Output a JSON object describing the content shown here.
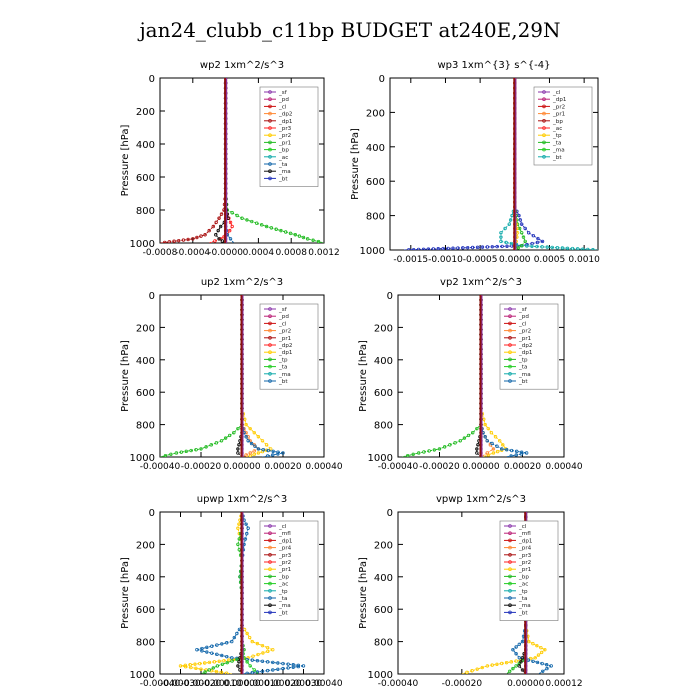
{
  "page": {
    "title": "jan24_clubb_c11bp  BUDGET at240E,29N"
  },
  "chart_data": [
    {
      "id": "wp2",
      "type": "line",
      "title": "wp2  1xm^2/s^3",
      "ylabel": "Pressure [hPa]",
      "xlim": [
        -0.0008,
        0.0012
      ],
      "ylim": [
        1000,
        0
      ],
      "xticks": [
        -0.0008,
        -0.0004,
        0,
        0.0004,
        0.0008,
        0.0012
      ],
      "xtick_labels": [
        "-0.0008",
        "-0.0004",
        "-0.0000",
        "0.0004",
        "0.0008",
        "0.0012"
      ],
      "yticks": [
        0,
        200,
        400,
        600,
        800,
        1000
      ],
      "legend": [
        "_sf",
        "_pd",
        "_cl",
        "_dp2",
        "_dp1",
        "_pr3",
        "_pr2",
        "_pr1",
        "_bp",
        "_ac",
        "_ta",
        "_ma",
        "_bt"
      ],
      "levels": [
        0,
        400,
        700,
        800,
        850,
        900,
        950,
        975,
        1000
      ],
      "series": [
        {
          "key": "_bp",
          "color": "#22bb22",
          "values": [
            0,
            0,
            0,
            2e-05,
            0.0002,
            0.0005,
            0.00085,
            0.001,
            0.0012
          ]
        },
        {
          "key": "_dp1",
          "color": "#aa1111",
          "values": [
            0,
            0,
            0,
            -2e-05,
            -8e-05,
            -0.00015,
            -0.00025,
            -0.0004,
            -0.0008
          ]
        },
        {
          "key": "_pr1",
          "color": "#ff2222",
          "values": [
            0,
            0,
            0,
            0,
            4e-05,
            8e-05,
            2e-05,
            -6e-05,
            -0.0002
          ]
        },
        {
          "key": "_ac",
          "color": "#1166aa",
          "values": [
            0,
            0,
            0,
            0,
            0,
            0,
            2e-05,
            6e-05,
            0.0001
          ]
        },
        {
          "key": "_ta",
          "color": "#111111",
          "values": [
            0,
            0,
            0,
            1e-05,
            3e-05,
            -6e-05,
            -0.00012,
            -8e-05,
            0
          ]
        },
        {
          "key": "_sf",
          "color": "#8833aa",
          "values": [
            0,
            0,
            0,
            0,
            0,
            0,
            0,
            0,
            0
          ]
        }
      ]
    },
    {
      "id": "wp3",
      "type": "line",
      "title": "wp3  1xm^{3} s^{-4}",
      "ylabel": "Pressure [hPa]",
      "xlim": [
        -0.0018,
        0.0012
      ],
      "ylim": [
        1000,
        0
      ],
      "xticks": [
        -0.0015,
        -0.001,
        -0.0005,
        0,
        0.0005,
        0.001
      ],
      "xtick_labels": [
        "-0.0015",
        "-0.0010",
        "-0.0005",
        "0.0000",
        "0.0005",
        "0.0010"
      ],
      "yticks": [
        0,
        200,
        400,
        600,
        800,
        1000
      ],
      "legend": [
        "_cl",
        "_dp1",
        "_pr2",
        "_pr1",
        "_bp",
        "_ac",
        "_tp",
        "_ta",
        "_ma",
        "_bt"
      ],
      "levels": [
        0,
        500,
        750,
        800,
        850,
        900,
        950,
        975,
        1000
      ],
      "series": [
        {
          "key": "_ta",
          "color": "#2233bb",
          "values": [
            0,
            0,
            0,
            6e-05,
            0.0001,
            0.0002,
            0.0004,
            0.0001,
            -0.0016
          ]
        },
        {
          "key": "_tp",
          "color": "#11aaaa",
          "values": [
            0,
            0,
            0,
            -4e-05,
            -8e-05,
            -0.0002,
            -0.0002,
            0.0001,
            0.0012
          ]
        },
        {
          "key": "_bp",
          "color": "#22bb22",
          "values": [
            0,
            0,
            0,
            2e-05,
            4e-05,
            0.0001,
            0.00015,
            0.0001,
            0
          ]
        },
        {
          "key": "_pr1",
          "color": "#ffcc00",
          "values": [
            0,
            0,
            0,
            0,
            2e-05,
            4e-05,
            2e-05,
            0,
            0
          ]
        },
        {
          "key": "_cl",
          "color": "#ff2222",
          "values": [
            0,
            0,
            0,
            0,
            0,
            0,
            0,
            0,
            0
          ]
        }
      ]
    },
    {
      "id": "up2",
      "type": "line",
      "title": "up2   1xm^2/s^3",
      "ylabel": "Pressure [hPa]",
      "xlim": [
        -0.0004,
        0.0004
      ],
      "ylim": [
        1000,
        0
      ],
      "xticks": [
        -0.0004,
        -0.0002,
        0,
        0.0002,
        0.0004
      ],
      "xtick_labels": [
        "-0.00040",
        "-0.00020",
        "0.00000",
        "0.00020",
        "0.00040"
      ],
      "yticks": [
        0,
        200,
        400,
        600,
        800,
        1000
      ],
      "legend": [
        "_sf",
        "_pd",
        "_cl",
        "_pr2",
        "_pr1",
        "_dp2",
        "_dp1",
        "_tp",
        "_ta",
        "_ma",
        "_bt"
      ],
      "levels": [
        0,
        700,
        800,
        850,
        900,
        950,
        975,
        1000
      ],
      "series": [
        {
          "key": "_dp1",
          "color": "#22bb22",
          "values": [
            0,
            0,
            0,
            -4e-05,
            -0.0001,
            -0.0002,
            -0.00032,
            -0.0004
          ]
        },
        {
          "key": "_pr1",
          "color": "#ffcc00",
          "values": [
            0,
            0,
            2e-05,
            6e-05,
            0.0001,
            0.00014,
            8e-05,
            2e-05
          ]
        },
        {
          "key": "_pr2",
          "color": "#ff8833",
          "values": [
            0,
            0,
            0,
            2e-05,
            4e-05,
            8e-05,
            4e-05,
            0
          ]
        },
        {
          "key": "_tp",
          "color": "#1166aa",
          "values": [
            0,
            0,
            0,
            1e-05,
            3e-05,
            8e-05,
            0.0002,
            0.0001
          ]
        },
        {
          "key": "_ta",
          "color": "#111111",
          "values": [
            0,
            0,
            0,
            0,
            -1e-05,
            -2e-05,
            -2e-05,
            0
          ]
        },
        {
          "key": "_sf",
          "color": "#aa1111",
          "values": [
            0,
            0,
            0,
            0,
            0,
            0,
            0,
            0
          ]
        }
      ]
    },
    {
      "id": "vp2",
      "type": "line",
      "title": "vp2   1xm^2/s^3",
      "ylabel": "Pressure [hPa]",
      "xlim": [
        -0.0004,
        0.0004
      ],
      "ylim": [
        1000,
        0
      ],
      "xticks": [
        -0.0004,
        -0.0002,
        0,
        0.0002,
        0.0004
      ],
      "xtick_labels": [
        "-0.00040",
        "-0.00020",
        "0.00000",
        "0.00020",
        "0.00040"
      ],
      "yticks": [
        0,
        200,
        400,
        600,
        800,
        1000
      ],
      "legend": [
        "_sf",
        "_pd",
        "_cl",
        "_pr2",
        "_pr1",
        "_dp2",
        "_dp1",
        "_tp",
        "_ta",
        "_ma",
        "_bt"
      ],
      "levels": [
        0,
        700,
        800,
        850,
        900,
        950,
        975,
        1000
      ],
      "series": [
        {
          "key": "_dp1",
          "color": "#22bb22",
          "values": [
            0,
            0,
            0,
            -4e-05,
            -0.0001,
            -0.0002,
            -0.0003,
            -0.00038
          ]
        },
        {
          "key": "_pr1",
          "color": "#ffcc00",
          "values": [
            0,
            0,
            2e-05,
            5e-05,
            9e-05,
            0.00012,
            6e-05,
            1e-05
          ]
        },
        {
          "key": "_pr2",
          "color": "#ff8833",
          "values": [
            0,
            0,
            0,
            1e-05,
            3e-05,
            6e-05,
            3e-05,
            0
          ]
        },
        {
          "key": "_tp",
          "color": "#1166aa",
          "values": [
            0,
            0,
            0,
            1e-05,
            3e-05,
            0.0001,
            0.00022,
            0.00012
          ]
        },
        {
          "key": "_ta",
          "color": "#111111",
          "values": [
            0,
            0,
            0,
            0,
            -1e-05,
            -2e-05,
            -2e-05,
            0
          ]
        },
        {
          "key": "_sf",
          "color": "#aa1111",
          "values": [
            0,
            0,
            0,
            0,
            0,
            0,
            0,
            0
          ]
        }
      ]
    },
    {
      "id": "upwp",
      "type": "line",
      "title": "upwp   1xm^2/s^3",
      "ylabel": "Pressure [hPa]",
      "xlim": [
        -0.0004,
        0.0004
      ],
      "ylim": [
        1000,
        0
      ],
      "xticks": [
        -0.0004,
        -0.0003,
        -0.0002,
        -0.0001,
        0,
        0.0001,
        0.0002,
        0.0003,
        0.0004
      ],
      "xtick_labels": [
        "-0.00040",
        "-0.00030",
        "-0.00020",
        "-0.00010",
        "0.00000",
        "0.00010",
        "0.00020",
        "0.00030",
        "0.00040"
      ],
      "yticks": [
        0,
        200,
        400,
        600,
        800,
        1000
      ],
      "legend": [
        "_cl",
        "_mfl",
        "_dp1",
        "_pr4",
        "_pr3",
        "_pr2",
        "_pr1",
        "_bp",
        "_ac",
        "_tp",
        "_ta",
        "_ma",
        "_bt"
      ],
      "levels": [
        0,
        50,
        100,
        200,
        300,
        400,
        500,
        700,
        800,
        850,
        900,
        950,
        1000
      ],
      "series": [
        {
          "key": "_pr1",
          "color": "#ffcc00",
          "values": [
            0,
            -1e-05,
            -2e-05,
            0,
            0,
            0,
            0,
            0,
            5e-05,
            0.00015,
            3e-05,
            -0.0003,
            -5e-05
          ]
        },
        {
          "key": "_tp",
          "color": "#1166aa",
          "values": [
            0,
            1e-05,
            3e-05,
            1e-05,
            0,
            -1e-05,
            0,
            0,
            -5e-05,
            -0.00022,
            -5e-05,
            0.0003,
            0
          ]
        },
        {
          "key": "_ac",
          "color": "#22bb22",
          "values": [
            0,
            0,
            0,
            -2e-05,
            0,
            -1e-05,
            0,
            0,
            0,
            1e-05,
            0,
            -0.00012,
            -0.0002
          ]
        },
        {
          "key": "_bp",
          "color": "#22cc22",
          "values": [
            0,
            0,
            0,
            0,
            0,
            0,
            0,
            0,
            0,
            0,
            1e-05,
            4e-05,
            8e-05
          ]
        },
        {
          "key": "_ta",
          "color": "#111111",
          "values": [
            0,
            0,
            0,
            0,
            0,
            0,
            0,
            0,
            0,
            0,
            -1e-05,
            -2e-05,
            0
          ]
        },
        {
          "key": "_pr2",
          "color": "#aa1111",
          "values": [
            0,
            0,
            0,
            0,
            0,
            0,
            0,
            0,
            0,
            0,
            0,
            0,
            0
          ]
        },
        {
          "key": "_cl",
          "color": "#8833aa",
          "values": [
            0,
            0,
            0,
            0,
            0,
            0,
            0,
            0,
            0,
            0,
            0,
            0,
            0
          ]
        }
      ]
    },
    {
      "id": "vpwp",
      "type": "line",
      "title": "vpwp   1xm^2/s^3",
      "ylabel": "Pressure [hPa]",
      "xlim": [
        -0.0004,
        0.00012
      ],
      "ylim": [
        1000,
        0
      ],
      "xticks": [
        -0.0004,
        -0.0002,
        0,
        0.00012
      ],
      "xtick_labels": [
        "-0.00040",
        "-0.00020",
        "0.00000",
        "0.00012"
      ],
      "yticks": [
        0,
        200,
        400,
        600,
        800,
        1000
      ],
      "legend": [
        "_cl",
        "_mfl",
        "_dp1",
        "_pr4",
        "_pr3",
        "_pr2",
        "_pr1",
        "_bp",
        "_ac",
        "_tp",
        "_ta",
        "_ma",
        "_bt"
      ],
      "levels": [
        0,
        400,
        700,
        800,
        850,
        900,
        950,
        1000
      ],
      "series": [
        {
          "key": "_pr1",
          "color": "#ffcc00",
          "values": [
            0,
            0,
            0,
            1e-05,
            6e-05,
            3e-05,
            -0.00012,
            -0.0002
          ]
        },
        {
          "key": "_tp",
          "color": "#1166aa",
          "values": [
            0,
            0,
            0,
            -1e-05,
            -4e-05,
            -2e-05,
            8e-05,
            4e-05
          ]
        },
        {
          "key": "_ac",
          "color": "#22bb22",
          "values": [
            0,
            0,
            0,
            0,
            0,
            0,
            -3e-05,
            -6e-05
          ]
        },
        {
          "key": "_ta",
          "color": "#111111",
          "values": [
            0,
            0,
            0,
            0,
            0,
            -1e-05,
            -2e-05,
            0
          ]
        },
        {
          "key": "_cl",
          "color": "#8833aa",
          "values": [
            0,
            0,
            0,
            0,
            0,
            0,
            0,
            0
          ]
        }
      ]
    }
  ]
}
